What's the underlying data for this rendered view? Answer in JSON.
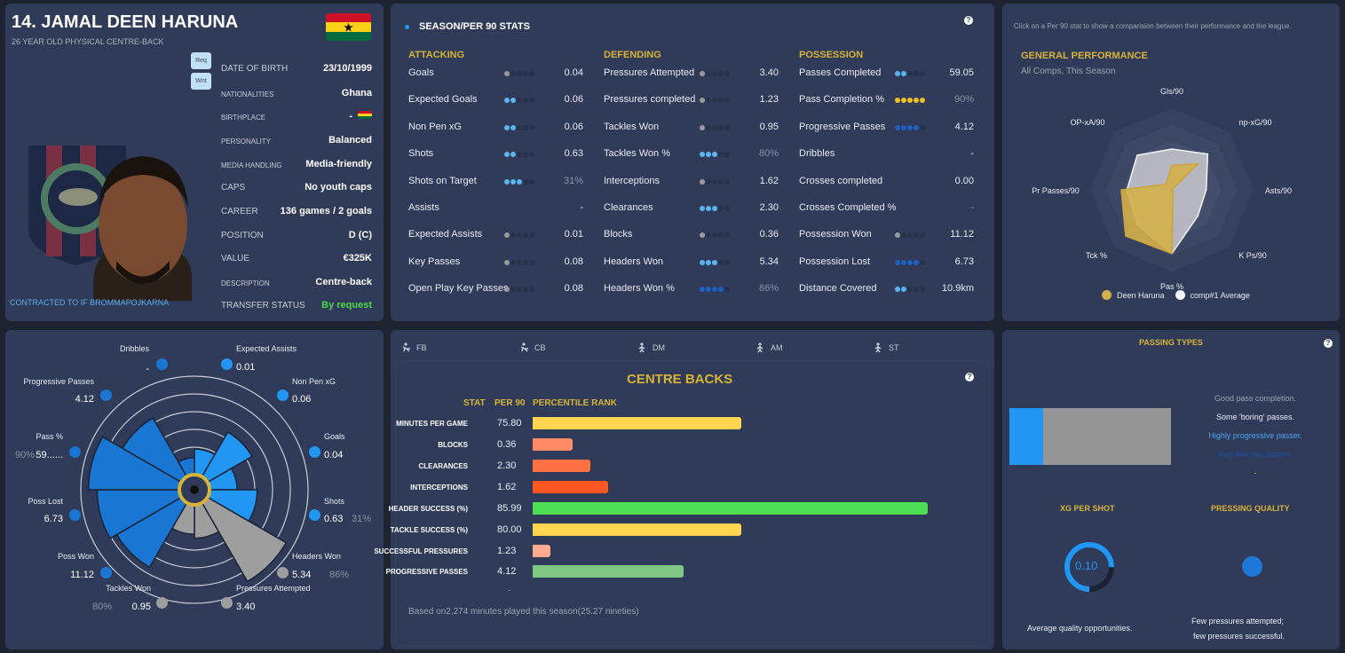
{
  "player": {
    "title": "14. JAMAL DEEN HARUNA",
    "subtitle": "26 YEAR OLD PHYSICAL CENTRE-BACK",
    "contract": "CONTRACTED TO IF BROMMAPOJKARNA",
    "req_label": "Req",
    "wnt_label": "Wnt",
    "info": [
      {
        "label": "DATE OF BIRTH",
        "value": "23/10/1999"
      },
      {
        "label": "NATIONALITIES",
        "value": "Ghana"
      },
      {
        "label": "BIRTHPLACE",
        "value": "-"
      },
      {
        "label": "PERSONALITY",
        "value": "Balanced"
      },
      {
        "label": "MEDIA HANDLING",
        "value": "Media-friendly"
      },
      {
        "label": "CAPS",
        "value": "No youth caps"
      },
      {
        "label": "CAREER",
        "value": "136  games /    2  goals"
      },
      {
        "label": "POSITION",
        "value": "D (C)"
      },
      {
        "label": "VALUE",
        "value": "€325K"
      },
      {
        "label": "DESCRIPTION",
        "value": "Centre-back"
      },
      {
        "label": "TRANSFER STATUS",
        "value": "By request"
      }
    ],
    "transfer_status_color": "#4cd94c",
    "flag_colors": [
      "#ce1126",
      "#fcd116",
      "#006b3f"
    ]
  },
  "season_stats": {
    "title": "SEASON/PER 90 STATS",
    "dot_colors": {
      "grey": "#9a9a9a",
      "light": "#5ab4f0",
      "dark": "#1f5fc0",
      "gold": "#f0c020"
    },
    "sections": [
      {
        "title": "ATTACKING",
        "stats": [
          {
            "name": "Goals",
            "value": "0.04",
            "dots": 1,
            "tier": "grey"
          },
          {
            "name": "Expected Goals",
            "value": "0.06",
            "dots": 2,
            "tier": "light"
          },
          {
            "name": "Non Pen xG",
            "value": "0.06",
            "dots": 2,
            "tier": "light"
          },
          {
            "name": "Shots",
            "value": "0.63",
            "dots": 2,
            "tier": "light"
          },
          {
            "name": "Shots on Target",
            "value": "31%",
            "dots": 3,
            "tier": "light",
            "pct": true
          },
          {
            "name": "Assists",
            "value": "-",
            "dots": 0,
            "tier": null
          },
          {
            "name": "Expected Assists",
            "value": "0.01",
            "dots": 1,
            "tier": "grey"
          },
          {
            "name": "Key Passes",
            "value": "0.08",
            "dots": 1,
            "tier": "grey"
          },
          {
            "name": "Open Play Key Passes",
            "value": "0.08",
            "dots": 1,
            "tier": "grey"
          }
        ]
      },
      {
        "title": "DEFENDING",
        "stats": [
          {
            "name": "Pressures Attempted",
            "value": "3.40",
            "dots": 1,
            "tier": "grey"
          },
          {
            "name": "Pressures completed",
            "value": "1.23",
            "dots": 1,
            "tier": "grey"
          },
          {
            "name": "Tackles Won",
            "value": "0.95",
            "dots": 1,
            "tier": "grey"
          },
          {
            "name": "Tackles Won %",
            "value": "80%",
            "dots": 3,
            "tier": "light",
            "pct": true
          },
          {
            "name": "Interceptions",
            "value": "1.62",
            "dots": 1,
            "tier": "grey"
          },
          {
            "name": "Clearances",
            "value": "2.30",
            "dots": 3,
            "tier": "light"
          },
          {
            "name": "Blocks",
            "value": "0.36",
            "dots": 1,
            "tier": "grey"
          },
          {
            "name": "Headers Won",
            "value": "5.34",
            "dots": 3,
            "tier": "light"
          },
          {
            "name": "Headers Won %",
            "value": "86%",
            "dots": 4,
            "tier": "dark",
            "pct": true
          }
        ]
      },
      {
        "title": "POSSESSION",
        "stats": [
          {
            "name": "Passes Completed",
            "value": "59.05",
            "dots": 2,
            "tier": "light"
          },
          {
            "name": "Pass Completion %",
            "value": "90%",
            "dots": 5,
            "tier": "gold",
            "pct": true
          },
          {
            "name": "Progressive Passes",
            "value": "4.12",
            "dots": 4,
            "tier": "dark"
          },
          {
            "name": "Dribbles",
            "value": "-",
            "dots": 0,
            "tier": null
          },
          {
            "name": "Crosses completed",
            "value": "0.00",
            "dots": 0,
            "tier": null
          },
          {
            "name": "Crosses Completed %",
            "value": "-",
            "dots": 0,
            "tier": null,
            "pct": true
          },
          {
            "name": "Possession Won",
            "value": "11.12",
            "dots": 1,
            "tier": "grey"
          },
          {
            "name": "Possession Lost",
            "value": "6.73",
            "dots": 4,
            "tier": "dark"
          },
          {
            "name": "Distance Covered",
            "value": "10.9km",
            "dots": 2,
            "tier": "light"
          }
        ]
      }
    ]
  },
  "general_performance": {
    "hint": "Click on a Per 90 stat to show a comparision between their performance and the league.",
    "title": "GENERAL PERFORMANCE",
    "subtitle": "All Comps, This Season",
    "chart_data": {
      "type": "radar",
      "axes": [
        "Gls/90",
        "np-xG/90",
        "Asts/90",
        "K Ps/90",
        "Pas %",
        "Tck %",
        "Pr Passes/90",
        "OP-xA/90"
      ],
      "series": [
        {
          "name": "Deen Haruna",
          "color": "#d4b04a",
          "values": [
            0.3,
            0.45,
            0.0,
            0.02,
            0.78,
            0.8,
            0.62,
            0.1
          ]
        },
        {
          "name": "comp#1 Average",
          "color": "#f4f4f4",
          "values": [
            0.5,
            0.62,
            0.42,
            0.45,
            0.78,
            0.6,
            0.55,
            0.6
          ]
        }
      ]
    }
  },
  "polar": {
    "center_icon": "question-icon",
    "items": [
      {
        "label": "Goals",
        "value": "0.04",
        "percentile": 26,
        "color": "#2196f3"
      },
      {
        "label": "Shots",
        "value": "0.63",
        "pct": "31%",
        "percentile": 47,
        "color": "#2196f3"
      },
      {
        "label": "Headers Won",
        "value": "5.34",
        "pct": "86%",
        "percentile": 92,
        "color": "#9e9e9e"
      },
      {
        "label": "Pressures Attempted",
        "value": "3.40",
        "percentile": 32,
        "color": "#9e9e9e"
      },
      {
        "label": "Tackles Won",
        "value": "0.95",
        "pct": "80%",
        "percentile": 28,
        "color": "#9e9e9e"
      },
      {
        "label": "Poss Won",
        "value": "11.12",
        "percentile": 75,
        "color": "#1976d2"
      },
      {
        "label": "Poss Lost",
        "value": "6.73",
        "percentile": 83,
        "color": "#1976d2"
      },
      {
        "label": "Pass %",
        "value": "59......",
        "pct": "90%",
        "percentile": 92,
        "color": "#1976d2"
      },
      {
        "label": "Progressive Passes",
        "value": "4.12",
        "percentile": 68,
        "color": "#1976d2"
      },
      {
        "label": "Dribbles",
        "value": "-",
        "percentile": 15,
        "color": "#1976d2"
      },
      {
        "label": "Expected Assists",
        "value": "0.01",
        "percentile": 24,
        "color": "#2196f3"
      },
      {
        "label": "Non Pen xG",
        "value": "0.06",
        "percentile": 51,
        "color": "#2196f3"
      }
    ]
  },
  "position_tabs": [
    "FB",
    "CB",
    "DM",
    "AM",
    "ST"
  ],
  "centre_backs": {
    "title": "CENTRE BACKS",
    "headers": [
      "STAT",
      "PER 90",
      "PERCENTILE RANK"
    ],
    "chart_data": {
      "type": "bar",
      "categories": [
        "MINUTES PER GAME",
        "BLOCKS",
        "CLEARANCES",
        "INTERCEPTIONS",
        "HEADER SUCCESS (%)",
        "TACKLE SUCCESS (%)",
        "SUCCESSFUL PRESSURES",
        "PROGRESSIVE PASSES"
      ],
      "per90": [
        "75.80",
        "0.36",
        "2.30",
        "1.62",
        "85.99",
        "80.00",
        "1.23",
        "4.12"
      ],
      "values": [
        47,
        9,
        13,
        17,
        89,
        47,
        4,
        34
      ],
      "colors": [
        "#ffd54f",
        "#ff8a65",
        "#ff7043",
        "#ff5722",
        "#4cdf55",
        "#ffd54f",
        "#ffab91",
        "#81c784"
      ],
      "xlim": [
        0,
        100
      ]
    },
    "dash": "-",
    "footer": "Based on2,274 minutes played this season(25.27 nineties)"
  },
  "passing_types": {
    "title": "PASSING TYPES",
    "bar_fraction": 0.21,
    "bar_color": "#2196f3",
    "notes": [
      {
        "text": "Good pass completion.",
        "color": "#9aa3b8"
      },
      {
        "text": "Some 'boring' passes.",
        "color": "#e8ecf4"
      },
      {
        "text": "Highly progressive passer.",
        "color": "#4fa3f0"
      },
      {
        "text": "Very few key passes.",
        "color": "#1f4fa8"
      },
      {
        "text": "-",
        "color": "#d8b338"
      }
    ]
  },
  "xg_per_shot": {
    "title": "XG PER SHOT",
    "value": "0.10",
    "ring_fraction": 0.75,
    "caption": "Average quality opportunities."
  },
  "pressing_quality": {
    "title": "PRESSING QUALITY",
    "caption_1": "Few pressures attempted;",
    "caption_2": "few pressures successful."
  }
}
